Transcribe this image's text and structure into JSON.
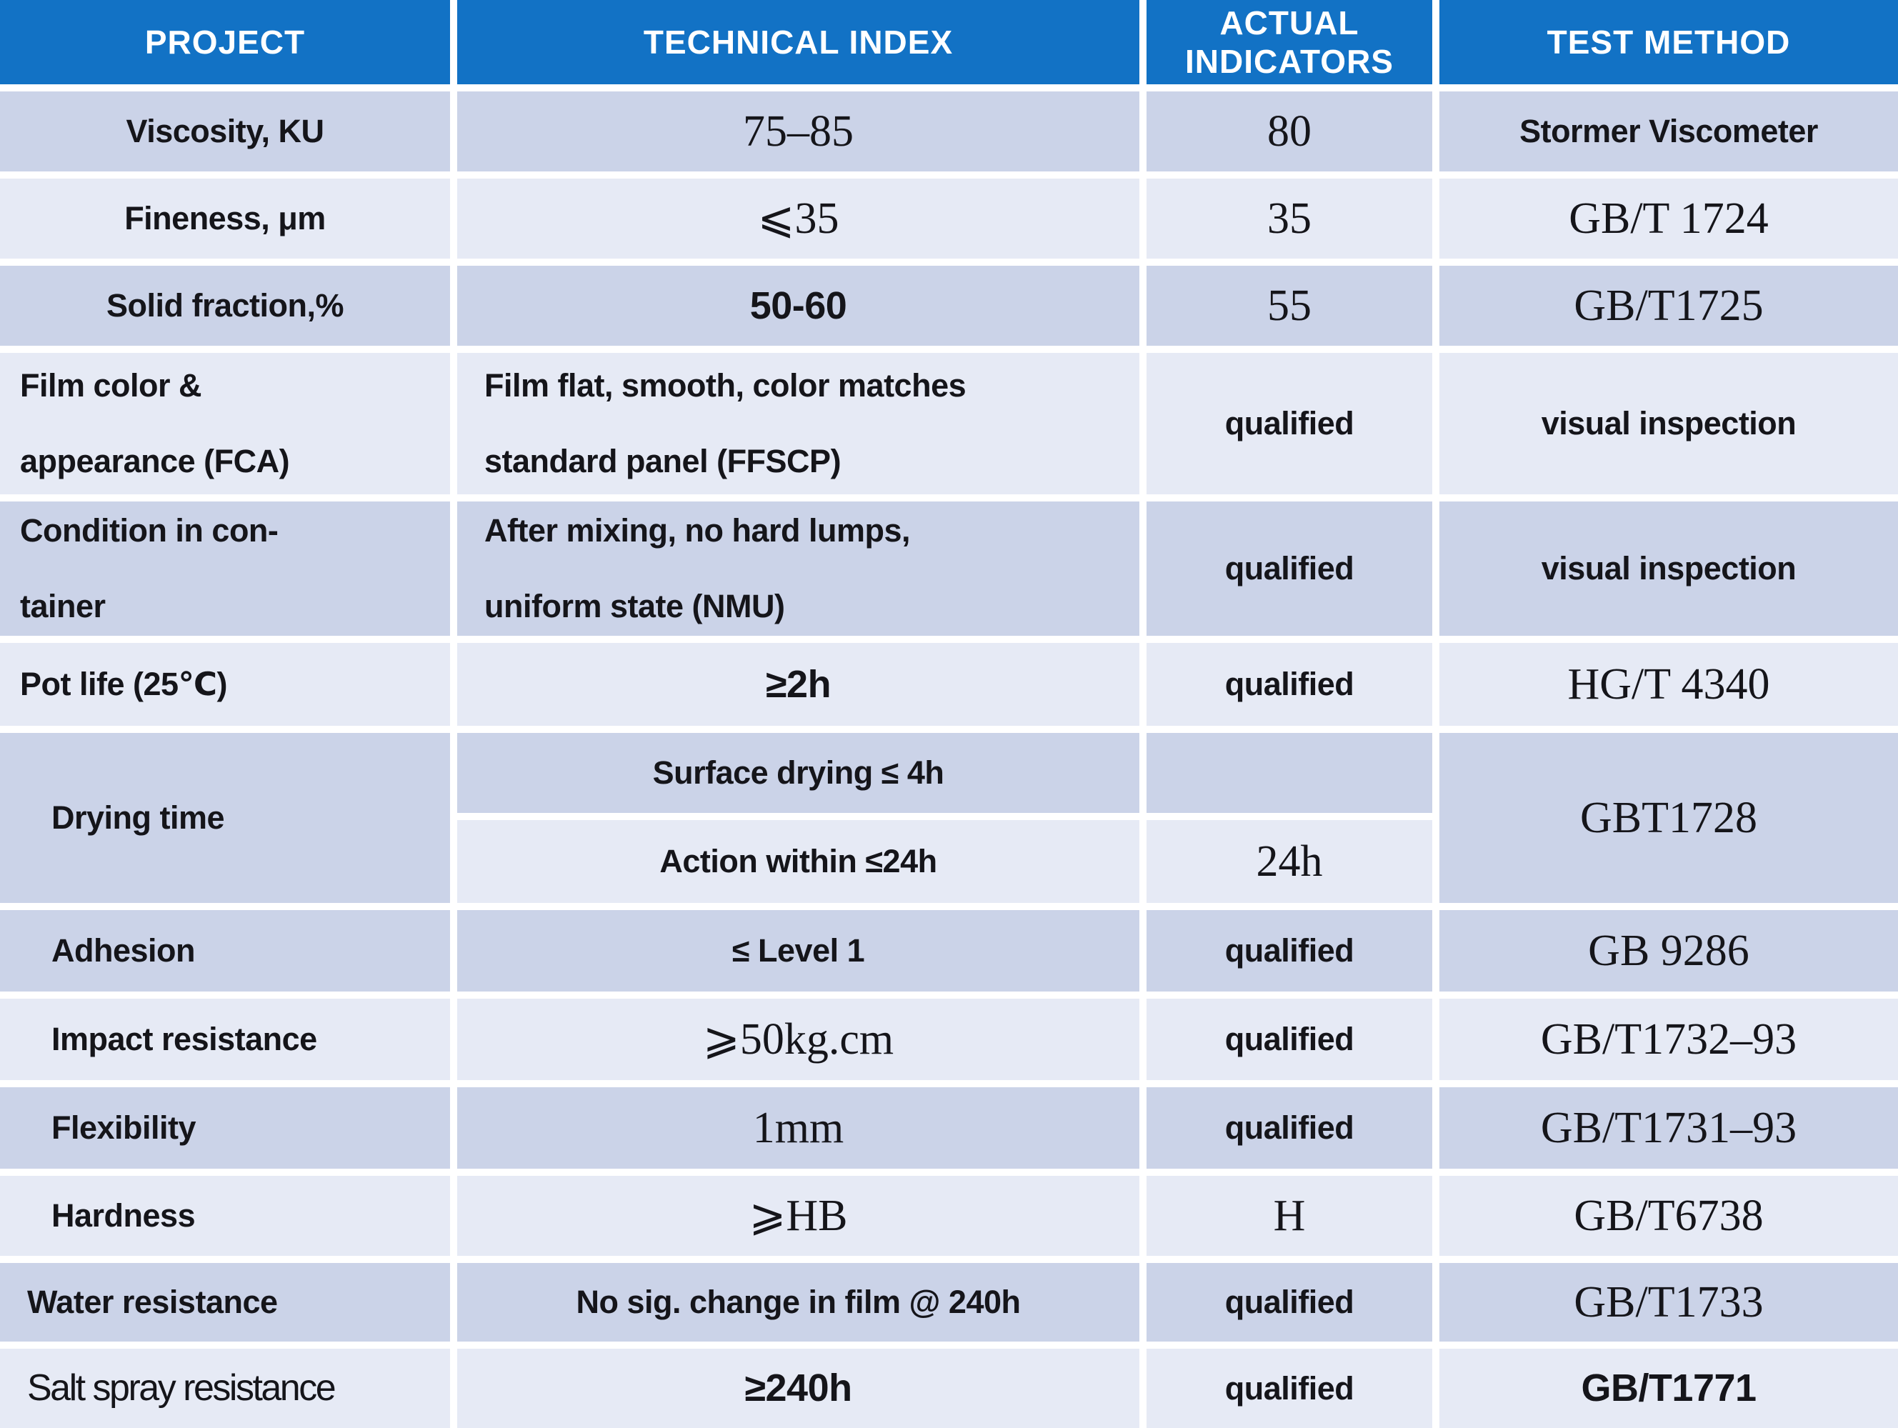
{
  "title": "Coating technical specification table",
  "colors": {
    "header_bg": "#1272c5",
    "header_text": "#ffffff",
    "row_dark": "#cbd3e8",
    "row_light": "#e6eaf5",
    "text": "#15151a"
  },
  "header": {
    "project": "PROJECT",
    "technical_index": "TECHNICAL INDEX",
    "actual_indicators": "ACTUAL\nINDICATORS",
    "test_method": "TEST METHOD"
  },
  "rows": {
    "viscosity": {
      "project": "Viscosity, KU",
      "index": "75–85",
      "actual": "80",
      "method": "Stormer Viscometer"
    },
    "fineness": {
      "project": "Fineness, μm",
      "index": "⩽35",
      "actual": "35",
      "method": "GB/T  1724"
    },
    "solid_fraction": {
      "project": "Solid fraction,%",
      "index": "50-60",
      "actual": "55",
      "method": "GB/T1725"
    },
    "film_color": {
      "project": "Film color &\nappearance (FCA)",
      "index": "Film flat, smooth, color matches\nstandard panel (FFSCP)",
      "actual": "qualified",
      "method": "visual inspection"
    },
    "condition": {
      "project": "Condition in con-\ntainer",
      "index": "After mixing, no hard lumps,\nuniform state (NMU)",
      "actual": "qualified",
      "method": "visual inspection"
    },
    "pot_life": {
      "project": "Pot life (25℃)",
      "index": "≥2h",
      "actual": "qualified",
      "method": "HG/T  4340"
    },
    "drying_time": {
      "project": "Drying time",
      "index_surface": "Surface drying ≤ 4h",
      "actual_surface": "",
      "index_action": "Action within ≤24h",
      "actual_action": "24h",
      "method": "GBT1728"
    },
    "adhesion": {
      "project": "Adhesion",
      "index": "≤ Level 1",
      "actual": "qualified",
      "method": "GB  9286"
    },
    "impact": {
      "project": "Impact resistance",
      "index": "⩾50kg.cm",
      "actual": "qualified",
      "method": "GB/T1732–93"
    },
    "flexibility": {
      "project": "Flexibility",
      "index": "1mm",
      "actual": "qualified",
      "method": "GB/T1731–93"
    },
    "hardness": {
      "project": "Hardness",
      "index": "⩾HB",
      "actual": "H",
      "method": "GB/T6738"
    },
    "water": {
      "project": "Water resistance",
      "index": "No sig. change in film @ 240h",
      "actual": "qualified",
      "method": "GB/T1733"
    },
    "salt_spray": {
      "project": "Salt spray resistance",
      "index": "≥240h",
      "actual": "qualified",
      "method": "GB/T1771"
    }
  }
}
